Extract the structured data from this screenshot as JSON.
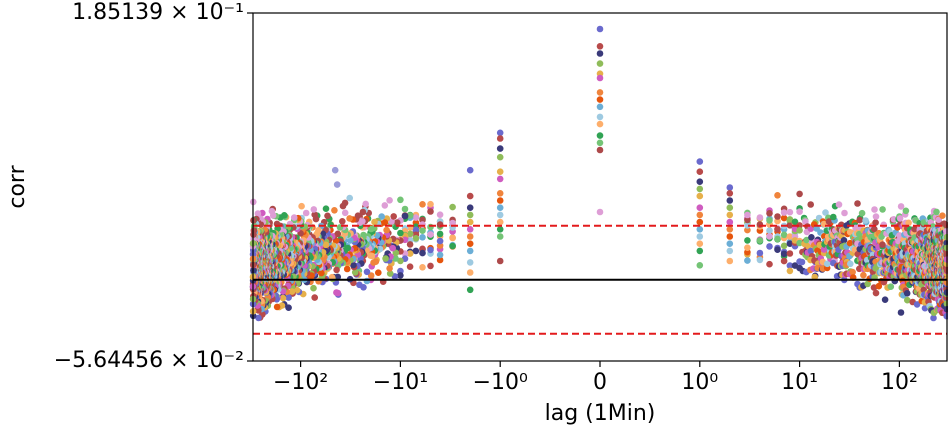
{
  "chart_data": {
    "type": "scatter",
    "title": "",
    "xlabel": "lag (1Min)",
    "ylabel": "corr",
    "x_scale": "symlog",
    "xlim": [
      -300,
      300
    ],
    "ylim": [
      -0.0564456,
      0.185139
    ],
    "ylim_labels": {
      "top": "1.85139 × 10⁻¹",
      "bottom": "−5.64456 × 10⁻²"
    },
    "x_ticks": [
      {
        "value": -100,
        "label": "−10²"
      },
      {
        "value": -10,
        "label": "−10¹"
      },
      {
        "value": -1,
        "label": "−10⁰"
      },
      {
        "value": 0,
        "label": "0"
      },
      {
        "value": 1,
        "label": "10⁰"
      },
      {
        "value": 10,
        "label": "10¹"
      },
      {
        "value": 100,
        "label": "10²"
      }
    ],
    "reference_lines": [
      {
        "y": 0.0,
        "style": "solid",
        "color": "#000000"
      },
      {
        "y": 0.0375,
        "style": "dashed",
        "color": "#e31a1c"
      },
      {
        "y": -0.0375,
        "style": "dashed",
        "color": "#e31a1c"
      }
    ],
    "point_colors": [
      "#6a6acd",
      "#b84a4a",
      "#3a3a7a",
      "#8fbc5a",
      "#e6b04a",
      "#cf5cc0",
      "#f0843c",
      "#e6550d",
      "#6baed6",
      "#9ecae1",
      "#fdae6b",
      "#31a354",
      "#74c476",
      "#ad494a",
      "#de9ed6"
    ],
    "series_summary": [
      {
        "lag": 0,
        "values": [
          0.174,
          0.162,
          0.157,
          0.15,
          0.143,
          0.14,
          0.13,
          0.125,
          0.12,
          0.113,
          0.108,
          0.1,
          0.095,
          0.09,
          0.047
        ]
      },
      {
        "lag": -1,
        "values": [
          0.102,
          0.098,
          0.091,
          0.085,
          0.075,
          0.07,
          0.06,
          0.055,
          0.05,
          0.045,
          0.04,
          0.035,
          0.03,
          0.013
        ]
      },
      {
        "lag": 1,
        "values": [
          0.082,
          0.075,
          0.068,
          0.063,
          0.058,
          0.05,
          0.045,
          0.04,
          0.035,
          0.03,
          0.025,
          0.02,
          0.01
        ]
      },
      {
        "lag": -2,
        "values": [
          0.076,
          0.058,
          0.05,
          0.045,
          0.04,
          0.035,
          0.03,
          0.025,
          0.02,
          0.012,
          0.005,
          -0.007
        ]
      },
      {
        "lag": 2,
        "values": [
          0.064,
          0.06,
          0.055,
          0.05,
          0.045,
          0.04,
          0.035,
          0.03,
          0.025,
          0.02,
          0.013
        ]
      }
    ]
  }
}
